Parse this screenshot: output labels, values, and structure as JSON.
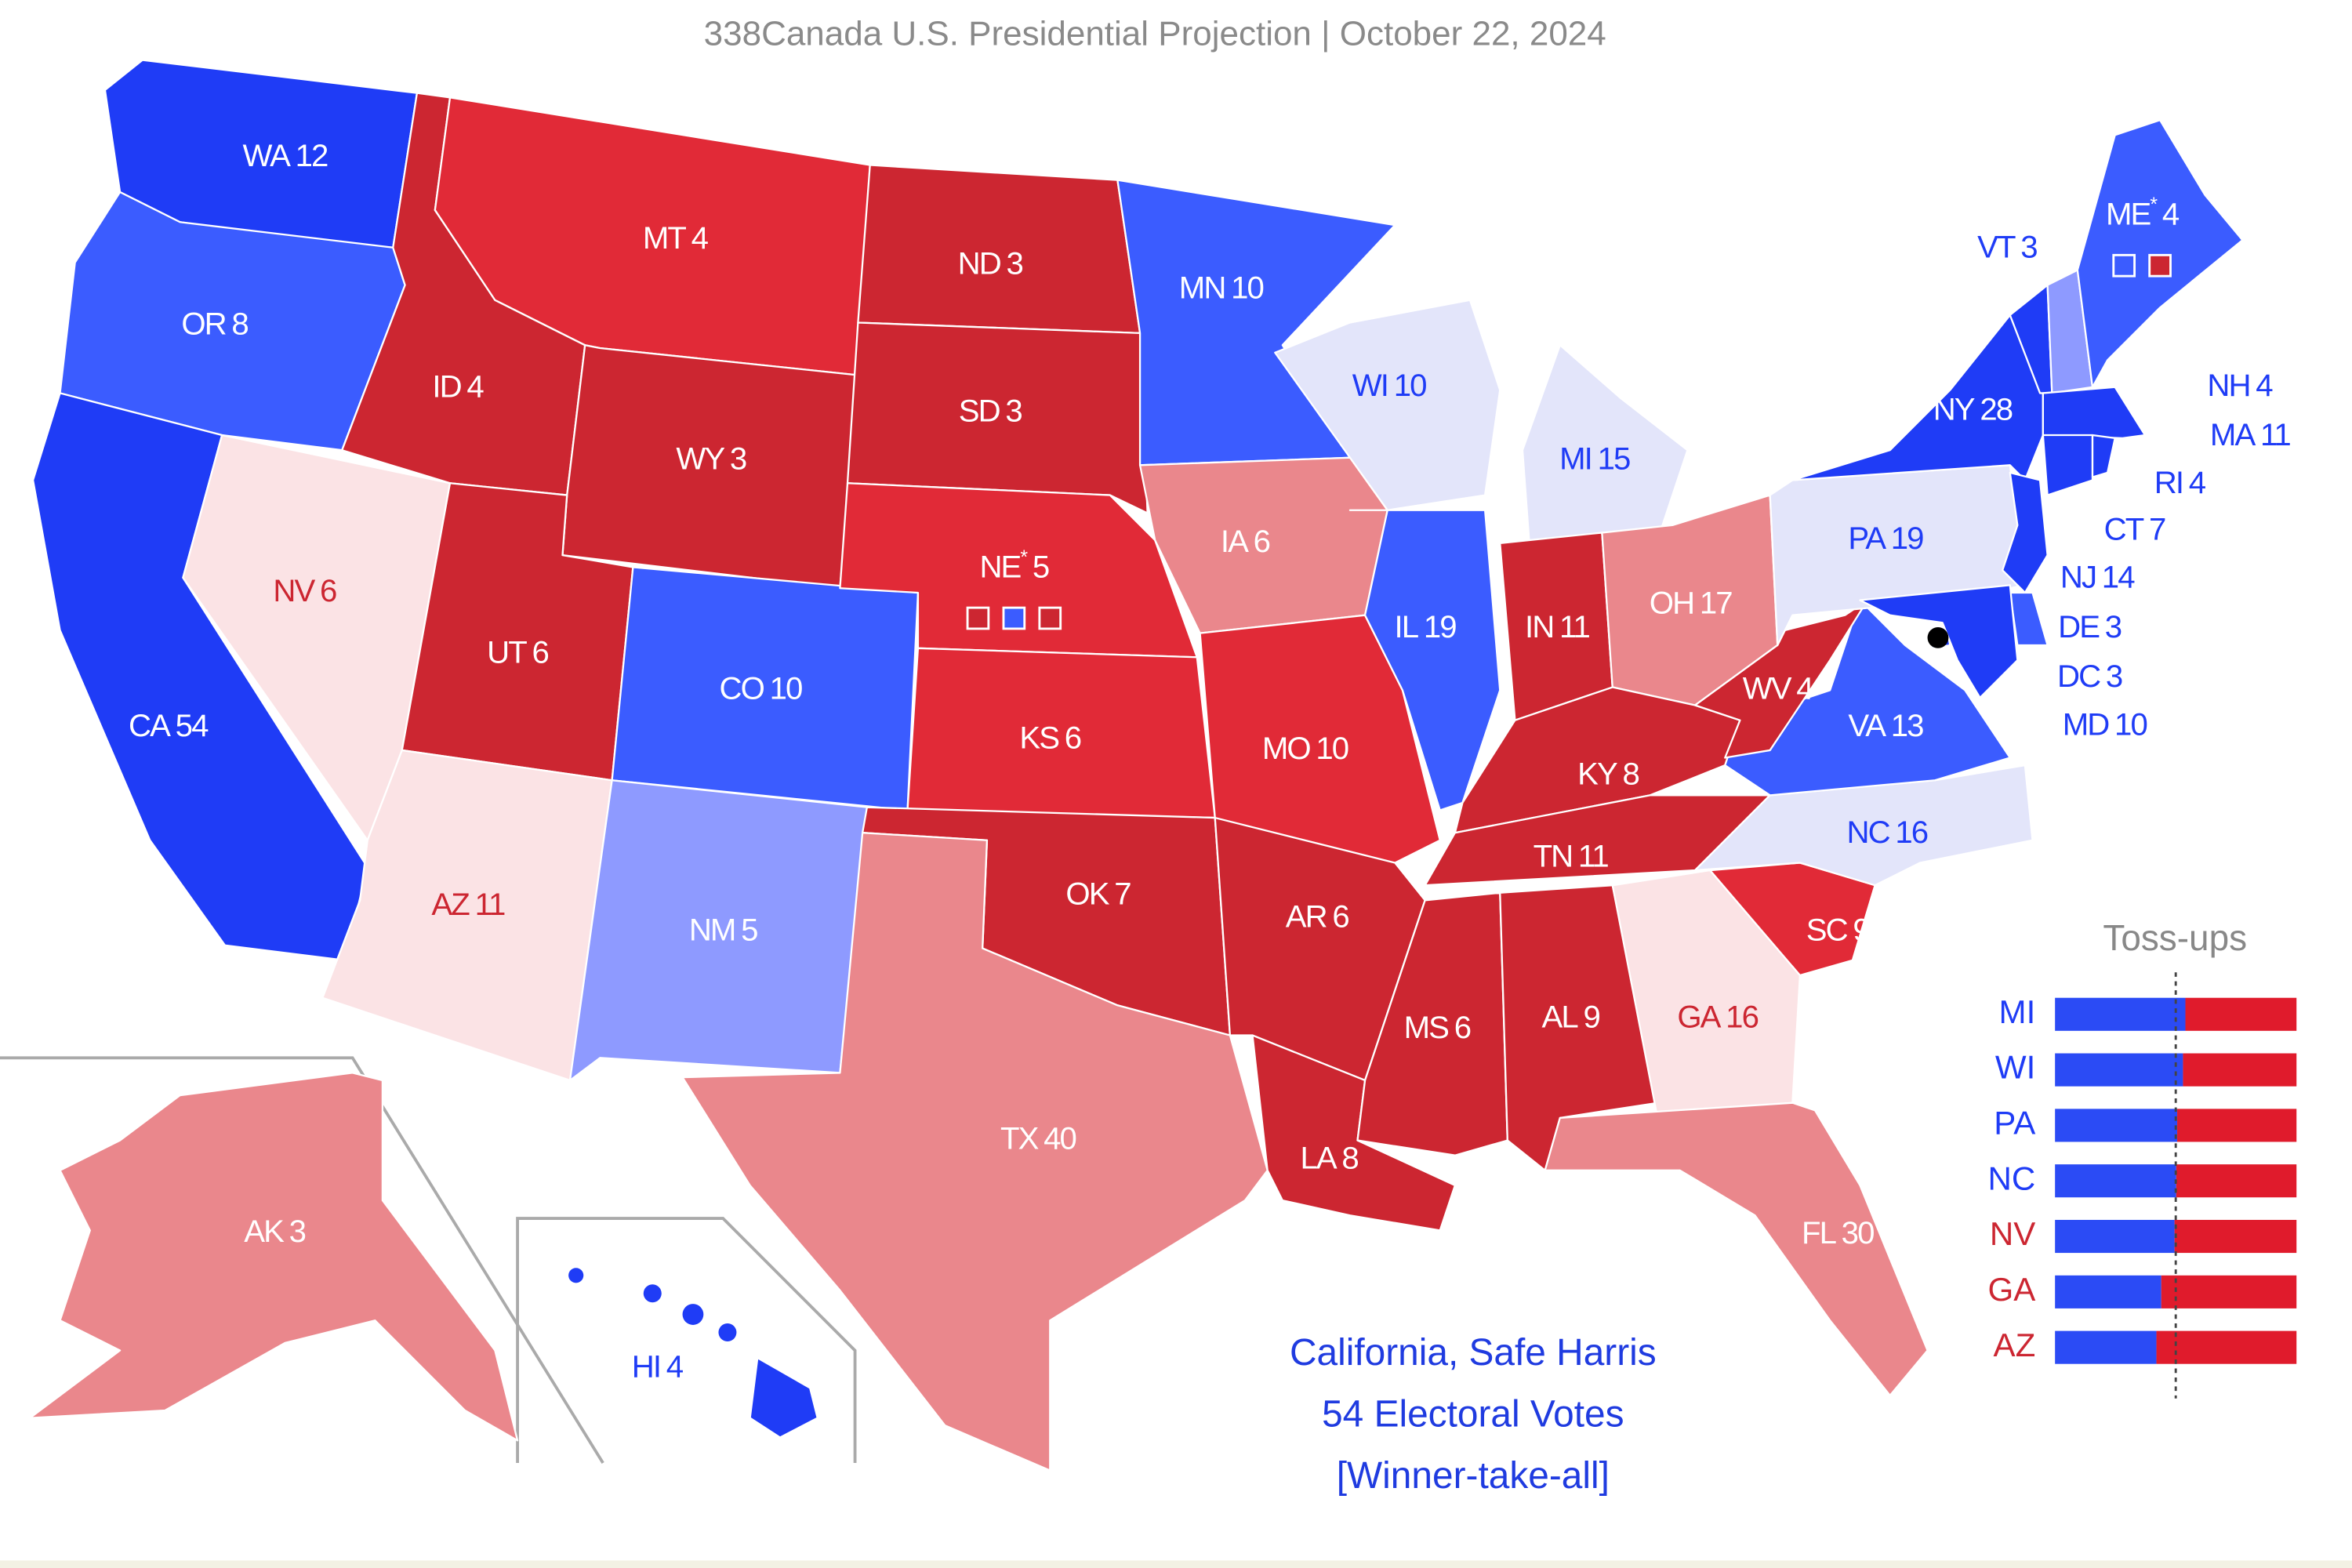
{
  "chart_data": {
    "type": "map",
    "title": "338Canada U.S. Presidential Projection | October 22, 2024",
    "states": [
      {
        "abbr": "WA",
        "votes": 12,
        "color": "#1f3cf6",
        "text_color": "#ffffff"
      },
      {
        "abbr": "OR",
        "votes": 8,
        "color": "#3b5cff",
        "text_color": "#ffffff"
      },
      {
        "abbr": "CA",
        "votes": 54,
        "color": "#1f3cf6",
        "text_color": "#ffffff"
      },
      {
        "abbr": "NV",
        "votes": 6,
        "color": "#fbe3e5",
        "text_color": "#cc2631"
      },
      {
        "abbr": "ID",
        "votes": 4,
        "color": "#cc2631",
        "text_color": "#ffffff"
      },
      {
        "abbr": "MT",
        "votes": 4,
        "color": "#e12a37",
        "text_color": "#ffffff"
      },
      {
        "abbr": "WY",
        "votes": 3,
        "color": "#cc2631",
        "text_color": "#ffffff"
      },
      {
        "abbr": "UT",
        "votes": 6,
        "color": "#cc2631",
        "text_color": "#ffffff"
      },
      {
        "abbr": "CO",
        "votes": 10,
        "color": "#3b5cff",
        "text_color": "#ffffff"
      },
      {
        "abbr": "AZ",
        "votes": 11,
        "color": "#fbe3e5",
        "text_color": "#cc2631"
      },
      {
        "abbr": "NM",
        "votes": 5,
        "color": "#8e9aff",
        "text_color": "#ffffff"
      },
      {
        "abbr": "ND",
        "votes": 3,
        "color": "#cc2631",
        "text_color": "#ffffff"
      },
      {
        "abbr": "SD",
        "votes": 3,
        "color": "#cc2631",
        "text_color": "#ffffff"
      },
      {
        "abbr": "NE",
        "votes": 5,
        "color": "#e12a37",
        "text_color": "#ffffff",
        "asterisk": "*",
        "district_colors": [
          "#cc2631",
          "#3b5cff",
          "#cc2631"
        ]
      },
      {
        "abbr": "KS",
        "votes": 6,
        "color": "#e12a37",
        "text_color": "#ffffff"
      },
      {
        "abbr": "OK",
        "votes": 7,
        "color": "#cc2631",
        "text_color": "#ffffff"
      },
      {
        "abbr": "TX",
        "votes": 40,
        "color": "#ea878c",
        "text_color": "#ffffff"
      },
      {
        "abbr": "MN",
        "votes": 10,
        "color": "#3b5cff",
        "text_color": "#ffffff"
      },
      {
        "abbr": "IA",
        "votes": 6,
        "color": "#ea878c",
        "text_color": "#ffffff"
      },
      {
        "abbr": "MO",
        "votes": 10,
        "color": "#e12a37",
        "text_color": "#ffffff"
      },
      {
        "abbr": "AR",
        "votes": 6,
        "color": "#cc2631",
        "text_color": "#ffffff"
      },
      {
        "abbr": "LA",
        "votes": 8,
        "color": "#cc2631",
        "text_color": "#ffffff"
      },
      {
        "abbr": "WI",
        "votes": 10,
        "color": "#e3e5fa",
        "text_color": "#1f3cf6"
      },
      {
        "abbr": "MI",
        "votes": 15,
        "color": "#e3e5fa",
        "text_color": "#1f3cf6"
      },
      {
        "abbr": "IL",
        "votes": 19,
        "color": "#3b5cff",
        "text_color": "#ffffff"
      },
      {
        "abbr": "IN",
        "votes": 11,
        "color": "#cc2631",
        "text_color": "#ffffff"
      },
      {
        "abbr": "OH",
        "votes": 17,
        "color": "#ea878c",
        "text_color": "#ffffff"
      },
      {
        "abbr": "KY",
        "votes": 8,
        "color": "#cc2631",
        "text_color": "#ffffff"
      },
      {
        "abbr": "TN",
        "votes": 11,
        "color": "#cc2631",
        "text_color": "#ffffff"
      },
      {
        "abbr": "MS",
        "votes": 6,
        "color": "#cc2631",
        "text_color": "#ffffff"
      },
      {
        "abbr": "AL",
        "votes": 9,
        "color": "#cc2631",
        "text_color": "#ffffff"
      },
      {
        "abbr": "GA",
        "votes": 16,
        "color": "#fbe3e5",
        "text_color": "#cc2631"
      },
      {
        "abbr": "FL",
        "votes": 30,
        "color": "#ea878c",
        "text_color": "#ffffff"
      },
      {
        "abbr": "SC",
        "votes": 9,
        "color": "#e12a37",
        "text_color": "#ffffff"
      },
      {
        "abbr": "NC",
        "votes": 16,
        "color": "#e3e5fa",
        "text_color": "#1f3cf6"
      },
      {
        "abbr": "VA",
        "votes": 13,
        "color": "#3b5cff",
        "text_color": "#ffffff"
      },
      {
        "abbr": "WV",
        "votes": 4,
        "color": "#cc2631",
        "text_color": "#ffffff"
      },
      {
        "abbr": "PA",
        "votes": 19,
        "color": "#e3e5fa",
        "text_color": "#1f3cf6"
      },
      {
        "abbr": "NY",
        "votes": 28,
        "color": "#1f3cf6",
        "text_color": "#ffffff"
      },
      {
        "abbr": "VT",
        "votes": 3,
        "color": "#1f3cf6",
        "text_color": "#1f3cf6"
      },
      {
        "abbr": "NH",
        "votes": 4,
        "color": "#8e9aff",
        "text_color": "#1f3cf6"
      },
      {
        "abbr": "ME",
        "votes": 4,
        "color": "#3b5cff",
        "text_color": "#ffffff",
        "asterisk": "*",
        "district_colors": [
          "#3b5cff",
          "#cc2631"
        ]
      },
      {
        "abbr": "MA",
        "votes": 11,
        "color": "#1f3cf6",
        "text_color": "#1f3cf6"
      },
      {
        "abbr": "RI",
        "votes": 4,
        "color": "#1f3cf6",
        "text_color": "#1f3cf6"
      },
      {
        "abbr": "CT",
        "votes": 7,
        "color": "#1f3cf6",
        "text_color": "#1f3cf6"
      },
      {
        "abbr": "NJ",
        "votes": 14,
        "color": "#1f3cf6",
        "text_color": "#1f3cf6"
      },
      {
        "abbr": "DE",
        "votes": 3,
        "color": "#3b5cff",
        "text_color": "#1f3cf6"
      },
      {
        "abbr": "DC",
        "votes": 3,
        "color": "#1f3cf6",
        "text_color": "#1f3cf6"
      },
      {
        "abbr": "MD",
        "votes": 10,
        "color": "#1f3cf6",
        "text_color": "#1f3cf6"
      },
      {
        "abbr": "AK",
        "votes": 3,
        "color": "#ea878c",
        "text_color": "#ffffff"
      },
      {
        "abbr": "HI",
        "votes": 4,
        "color": "#1f3cf6",
        "text_color": "#1f3cf6"
      }
    ],
    "annotation": [
      "California, Safe Harris",
      "54 Electoral Votes",
      "[Winner-take-all]"
    ],
    "annotation_color": "#1f3be0",
    "tossups": {
      "title": "Toss-ups",
      "xlim": [
        0,
        100
      ],
      "midpoint": 50,
      "left_color": "#2b4bf5",
      "right_color": "#e01b2c",
      "rows": [
        {
          "state": "MI",
          "harris_share": 54,
          "label_color": "#1f3cf6"
        },
        {
          "state": "WI",
          "harris_share": 53,
          "label_color": "#1f3cf6"
        },
        {
          "state": "PA",
          "harris_share": 50.6,
          "label_color": "#1f3cf6"
        },
        {
          "state": "NC",
          "harris_share": 50.2,
          "label_color": "#1f3cf6"
        },
        {
          "state": "NV",
          "harris_share": 49.5,
          "label_color": "#cc2631"
        },
        {
          "state": "GA",
          "harris_share": 44,
          "label_color": "#cc2631"
        },
        {
          "state": "AZ",
          "harris_share": 42,
          "label_color": "#cc2631"
        }
      ]
    }
  }
}
